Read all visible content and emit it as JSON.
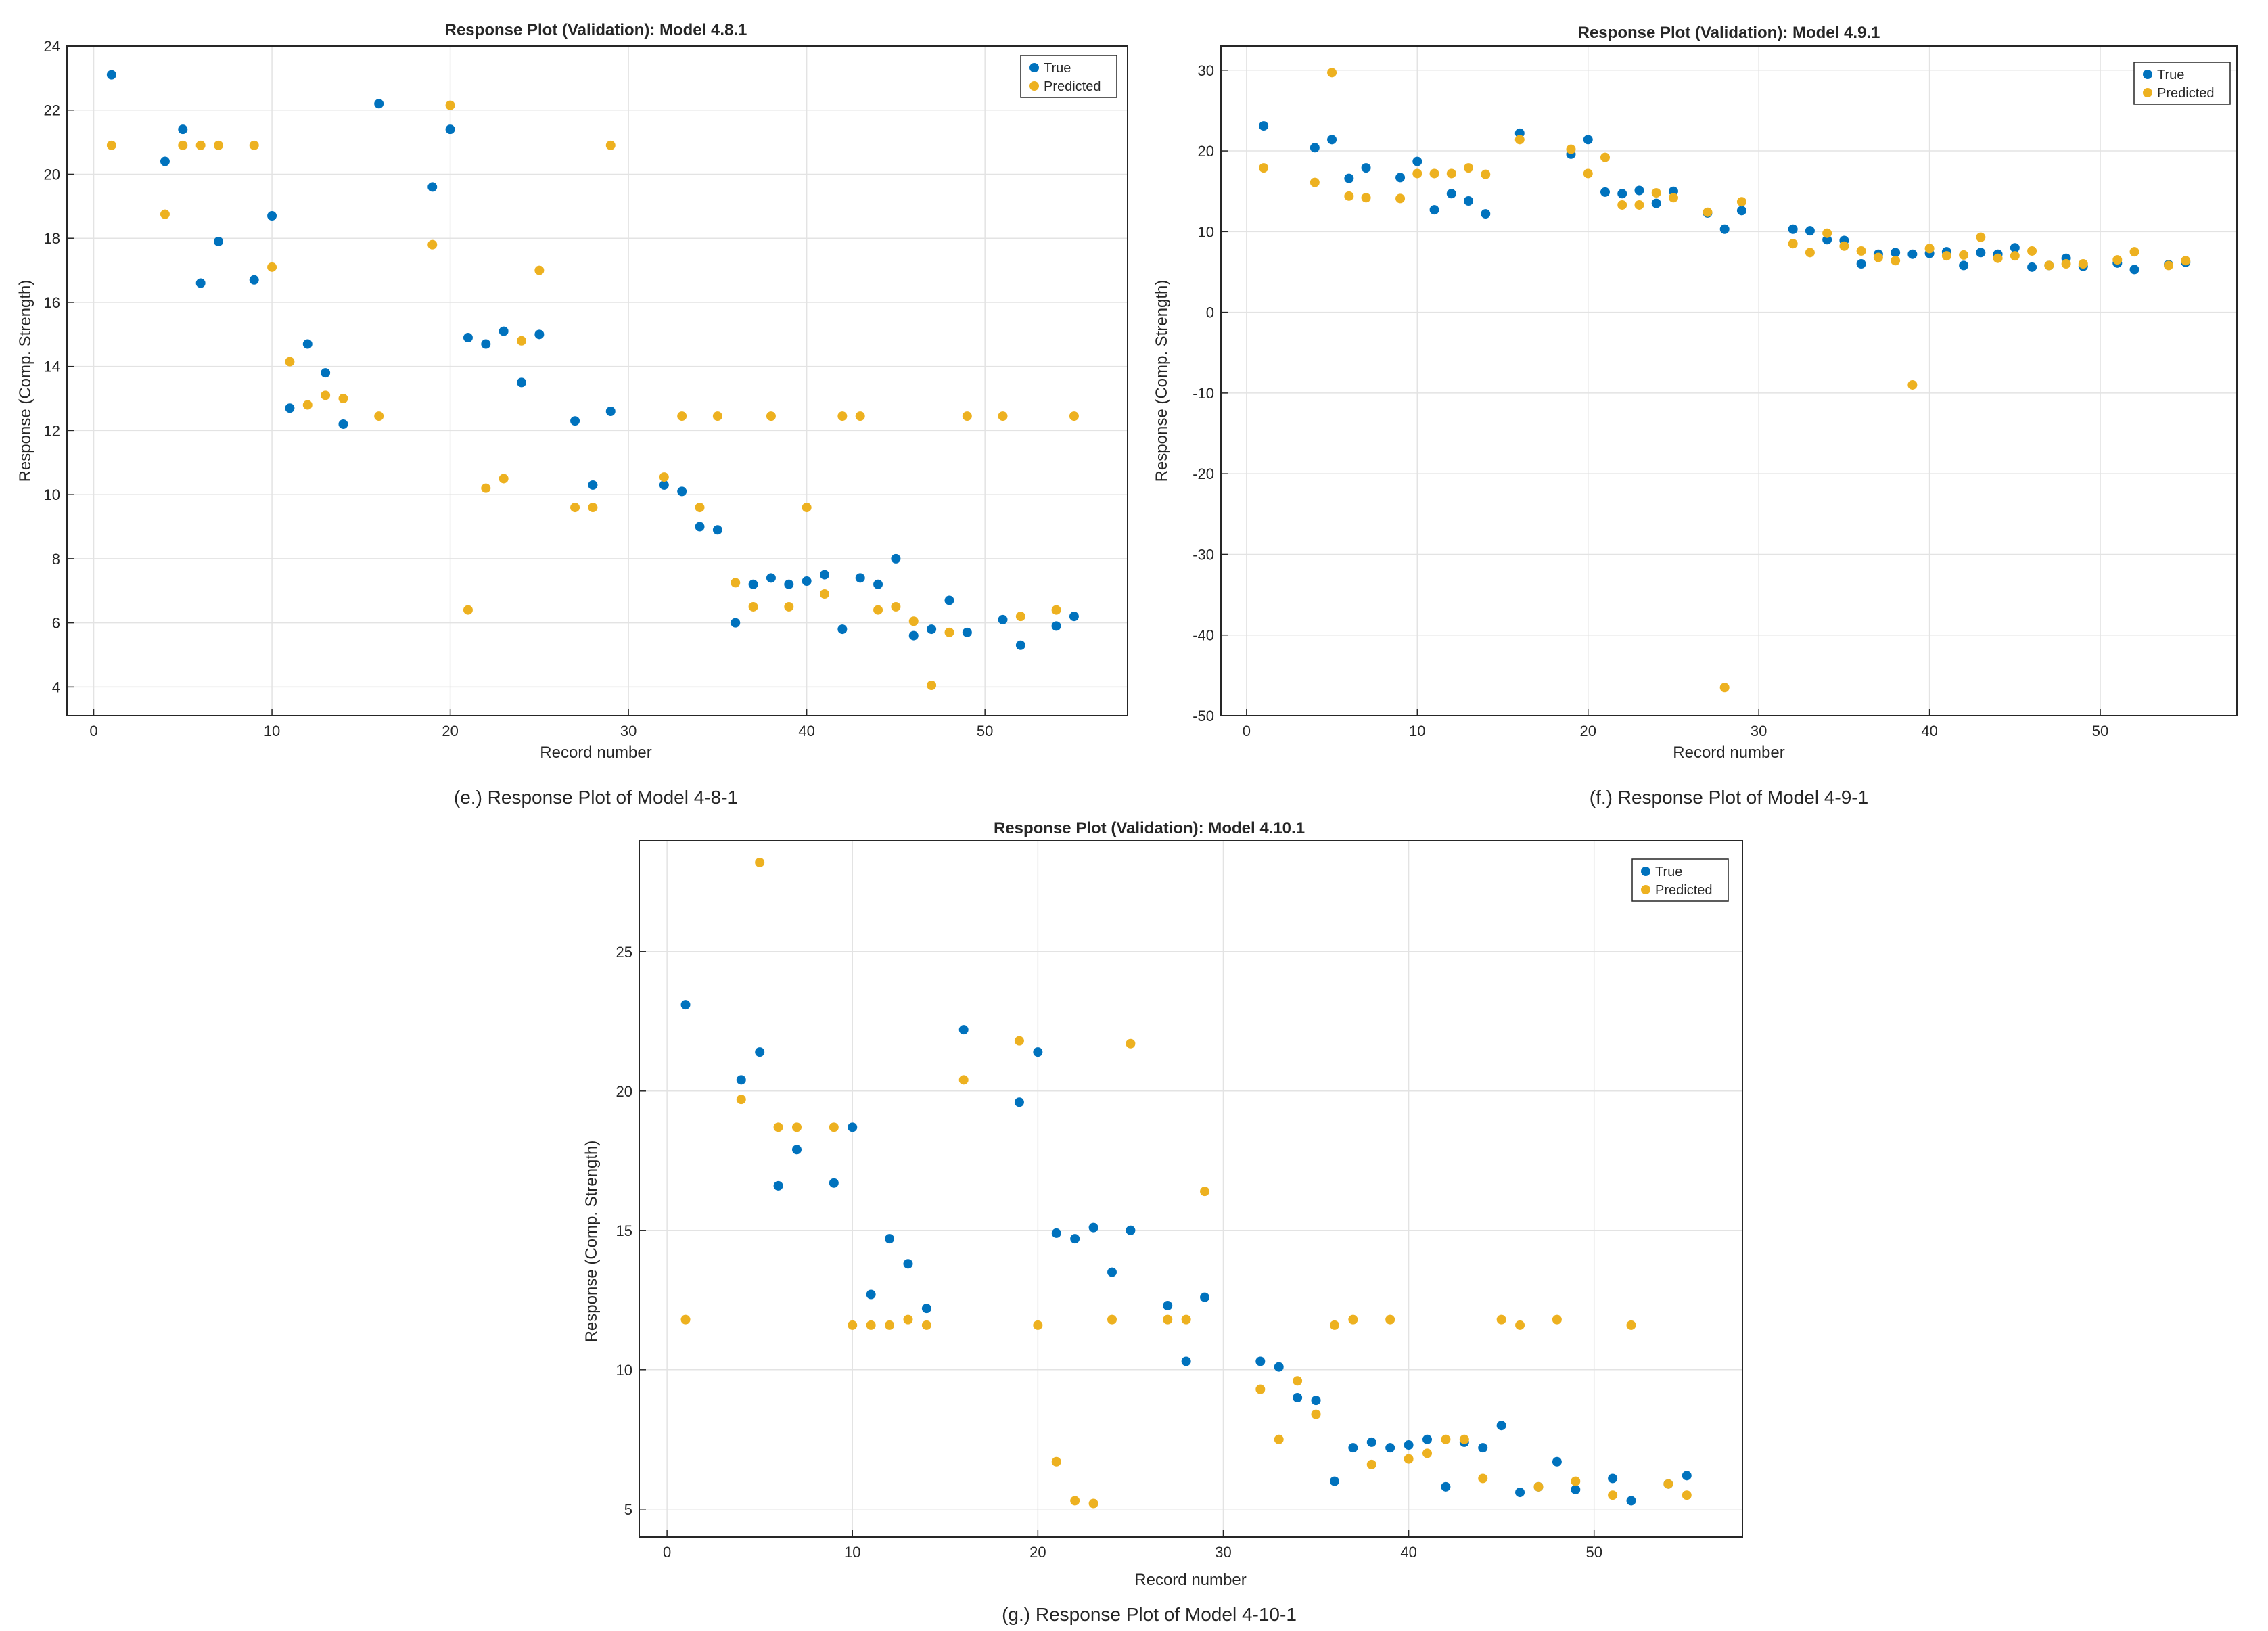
{
  "colors": {
    "true": "#0072BD",
    "predicted": "#EDB120",
    "grid": "#e3e3e3",
    "axis": "#262626"
  },
  "chart_data": [
    {
      "id": "e",
      "type": "scatter",
      "title": "Response Plot (Validation): Model 4.8.1",
      "xlabel": "Record number",
      "ylabel": "Response (Comp. Strength)",
      "caption": "(e.) Response Plot of Model 4-8-1",
      "xlim": [
        -1.5,
        58
      ],
      "ylim": [
        3.1,
        24
      ],
      "xticks": [
        0,
        10,
        20,
        30,
        40,
        50
      ],
      "yticks": [
        4,
        6,
        8,
        10,
        12,
        14,
        16,
        18,
        20,
        22,
        24
      ],
      "legend": [
        "True",
        "Predicted"
      ],
      "legend_position": "top-right",
      "series": [
        {
          "name": "True",
          "x": [
            1,
            4,
            5,
            6,
            7,
            9,
            10,
            11,
            12,
            13,
            14,
            16,
            19,
            20,
            21,
            22,
            23,
            24,
            25,
            27,
            28,
            29,
            32,
            33,
            34,
            35,
            36,
            37,
            38,
            39,
            40,
            41,
            42,
            43,
            44,
            45,
            46,
            47,
            48,
            49,
            51,
            52,
            54,
            55
          ],
          "y": [
            23.1,
            20.4,
            21.4,
            16.6,
            17.9,
            16.7,
            18.7,
            12.7,
            14.7,
            13.8,
            12.2,
            22.2,
            19.6,
            21.4,
            14.9,
            14.7,
            15.1,
            13.5,
            15.0,
            12.3,
            10.3,
            12.6,
            10.3,
            10.1,
            9.0,
            8.9,
            6.0,
            7.2,
            7.4,
            7.2,
            7.3,
            7.5,
            5.8,
            7.4,
            7.2,
            8.0,
            5.6,
            5.8,
            6.7,
            5.7,
            6.1,
            5.3,
            5.9,
            6.2
          ]
        },
        {
          "name": "Predicted",
          "x": [
            1,
            4,
            5,
            6,
            7,
            9,
            10,
            11,
            12,
            13,
            14,
            16,
            19,
            20,
            21,
            22,
            23,
            24,
            25,
            27,
            28,
            29,
            32,
            33,
            34,
            35,
            36,
            37,
            38,
            39,
            40,
            41,
            42,
            43,
            44,
            45,
            46,
            47,
            48,
            49,
            51,
            52,
            54,
            55
          ],
          "y": [
            20.9,
            18.75,
            20.9,
            20.9,
            20.9,
            20.9,
            17.1,
            14.15,
            12.8,
            13.1,
            13.0,
            12.45,
            17.8,
            22.15,
            6.4,
            10.2,
            10.5,
            14.8,
            17.0,
            9.6,
            9.6,
            20.9,
            10.55,
            12.45,
            9.6,
            12.45,
            7.25,
            6.5,
            12.45,
            6.5,
            9.6,
            6.9,
            12.45,
            12.45,
            6.4,
            6.5,
            6.05,
            4.05,
            5.7,
            12.45,
            12.45,
            6.2,
            6.4,
            12.45
          ]
        }
      ]
    },
    {
      "id": "f",
      "type": "scatter",
      "title": "Response Plot (Validation): Model 4.9.1",
      "xlabel": "Record number",
      "ylabel": "Response (Comp. Strength)",
      "caption": "(f.) Response Plot of Model 4-9-1",
      "xlim": [
        -1.5,
        58
      ],
      "ylim": [
        -50,
        33
      ],
      "xticks": [
        0,
        10,
        20,
        30,
        40,
        50
      ],
      "yticks": [
        -50,
        -40,
        -30,
        -20,
        -10,
        0,
        10,
        20,
        30
      ],
      "legend": [
        "True",
        "Predicted"
      ],
      "legend_position": "top-right",
      "series": [
        {
          "name": "True",
          "x": [
            1,
            4,
            5,
            6,
            7,
            9,
            10,
            11,
            12,
            13,
            14,
            16,
            19,
            20,
            21,
            22,
            23,
            24,
            25,
            27,
            28,
            29,
            32,
            33,
            34,
            35,
            36,
            37,
            38,
            39,
            40,
            41,
            42,
            43,
            44,
            45,
            46,
            47,
            48,
            49,
            51,
            52,
            54,
            55
          ],
          "y": [
            23.1,
            20.4,
            21.4,
            16.6,
            17.9,
            16.7,
            18.7,
            12.7,
            14.7,
            13.8,
            12.2,
            22.2,
            19.6,
            21.4,
            14.9,
            14.7,
            15.1,
            13.5,
            15.0,
            12.3,
            10.3,
            12.6,
            10.3,
            10.1,
            9.0,
            8.9,
            6.0,
            7.2,
            7.4,
            7.2,
            7.3,
            7.5,
            5.8,
            7.4,
            7.2,
            8.0,
            5.6,
            5.8,
            6.7,
            5.7,
            6.1,
            5.3,
            5.9,
            6.2
          ]
        },
        {
          "name": "Predicted",
          "x": [
            1,
            4,
            5,
            6,
            7,
            9,
            10,
            11,
            12,
            13,
            14,
            16,
            19,
            20,
            21,
            22,
            23,
            24,
            25,
            27,
            28,
            29,
            32,
            33,
            34,
            35,
            36,
            37,
            38,
            39,
            40,
            41,
            42,
            43,
            44,
            45,
            46,
            47,
            48,
            49,
            51,
            52,
            54,
            55
          ],
          "y": [
            17.9,
            16.1,
            29.7,
            14.4,
            14.2,
            14.1,
            17.2,
            17.2,
            17.2,
            17.9,
            17.1,
            21.4,
            20.2,
            17.2,
            19.2,
            13.3,
            13.3,
            14.8,
            14.2,
            12.4,
            -46.5,
            13.7,
            8.5,
            7.4,
            9.8,
            8.2,
            7.6,
            6.8,
            6.4,
            -9.0,
            7.9,
            7.0,
            7.1,
            9.3,
            6.7,
            7.0,
            7.6,
            5.8,
            6.0,
            6.0,
            6.5,
            7.5,
            5.8,
            6.4
          ]
        }
      ]
    },
    {
      "id": "g",
      "type": "scatter",
      "title": "Response Plot (Validation): Model 4.10.1",
      "xlabel": "Record number",
      "ylabel": "Response (Comp. Strength)",
      "caption": "(g.) Response Plot of Model 4-10-1",
      "xlim": [
        -1.5,
        58
      ],
      "ylim": [
        4,
        29
      ],
      "xticks": [
        0,
        10,
        20,
        30,
        40,
        50
      ],
      "yticks": [
        5,
        10,
        15,
        20,
        25
      ],
      "legend": [
        "True",
        "Predicted"
      ],
      "legend_position": "top-right",
      "series": [
        {
          "name": "True",
          "x": [
            1,
            4,
            5,
            6,
            7,
            9,
            10,
            11,
            12,
            13,
            14,
            16,
            19,
            20,
            21,
            22,
            23,
            24,
            25,
            27,
            28,
            29,
            32,
            33,
            34,
            35,
            36,
            37,
            38,
            39,
            40,
            41,
            42,
            43,
            44,
            45,
            46,
            47,
            48,
            49,
            51,
            52,
            54,
            55
          ],
          "y": [
            23.1,
            20.4,
            21.4,
            16.6,
            17.9,
            16.7,
            18.7,
            12.7,
            14.7,
            13.8,
            12.2,
            22.2,
            19.6,
            21.4,
            14.9,
            14.7,
            15.1,
            13.5,
            15.0,
            12.3,
            10.3,
            12.6,
            10.3,
            10.1,
            9.0,
            8.9,
            6.0,
            7.2,
            7.4,
            7.2,
            7.3,
            7.5,
            5.8,
            7.4,
            7.2,
            8.0,
            5.6,
            5.8,
            6.7,
            5.7,
            6.1,
            5.3,
            5.9,
            6.2
          ]
        },
        {
          "name": "Predicted",
          "x": [
            1,
            4,
            5,
            6,
            7,
            9,
            10,
            11,
            12,
            13,
            14,
            16,
            19,
            20,
            21,
            22,
            23,
            24,
            25,
            27,
            28,
            29,
            32,
            33,
            34,
            35,
            36,
            37,
            38,
            39,
            40,
            41,
            42,
            43,
            44,
            45,
            46,
            47,
            48,
            49,
            51,
            52,
            54,
            55
          ],
          "y": [
            11.8,
            19.7,
            28.2,
            18.7,
            18.7,
            18.7,
            11.6,
            11.6,
            11.6,
            11.8,
            11.6,
            20.4,
            21.8,
            11.6,
            6.7,
            5.3,
            5.2,
            11.8,
            21.7,
            11.8,
            11.8,
            16.4,
            9.3,
            7.5,
            9.6,
            8.4,
            11.6,
            11.8,
            6.6,
            11.8,
            6.8,
            7.0,
            7.5,
            7.5,
            6.1,
            11.8,
            11.6,
            5.8,
            11.8,
            6.0,
            5.5,
            11.6,
            5.9,
            5.5
          ]
        }
      ]
    }
  ]
}
